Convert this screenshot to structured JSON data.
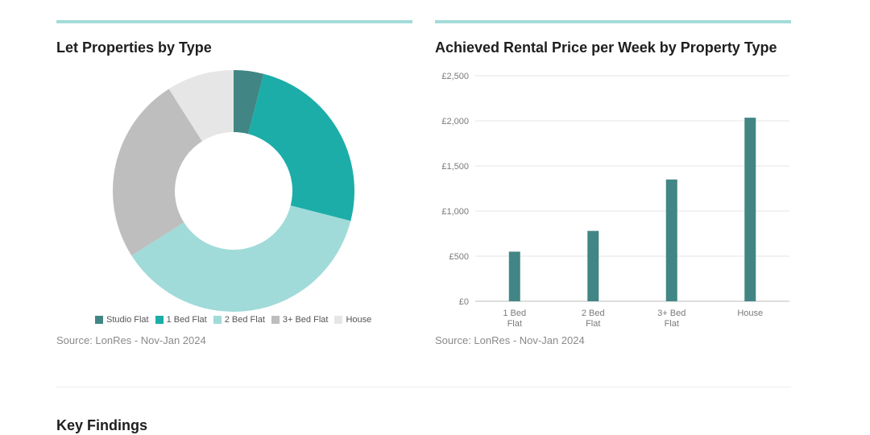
{
  "left_panel": {
    "title": "Let Properties by Type",
    "source": "Source: LonRes - Nov-Jan 2024"
  },
  "right_panel": {
    "title": "Achieved Rental Price per Week by Property Type",
    "source": "Source: LonRes - Nov-Jan 2024"
  },
  "key_findings": "Key Findings",
  "colors": {
    "accent_bar": "#a3dcd9",
    "bar": "#418684"
  },
  "chart_data": [
    {
      "type": "pie",
      "title": "Let Properties by Type",
      "categories": [
        "Studio Flat",
        "1 Bed Flat",
        "2 Bed Flat",
        "3+ Bed Flat",
        "House"
      ],
      "values": [
        4,
        25,
        37,
        25,
        9
      ],
      "colors": [
        "#418684",
        "#1cada9",
        "#a0dbd9",
        "#bebebe",
        "#e6e6e6"
      ],
      "legend": "bottom"
    },
    {
      "type": "bar",
      "title": "Achieved Rental Price per Week by Property Type",
      "categories": [
        [
          "1 Bed",
          "Flat"
        ],
        [
          "2 Bed",
          "Flat"
        ],
        [
          "3+ Bed",
          "Flat"
        ],
        [
          "House"
        ]
      ],
      "values": [
        550,
        780,
        1350,
        2035
      ],
      "y_ticks": [
        "£0",
        "£500",
        "£1,000",
        "£1,500",
        "£2,000",
        "£2,500"
      ],
      "y_tick_values": [
        0,
        500,
        1000,
        1500,
        2000,
        2500
      ],
      "ylim": [
        0,
        2500
      ],
      "grid": true
    }
  ]
}
